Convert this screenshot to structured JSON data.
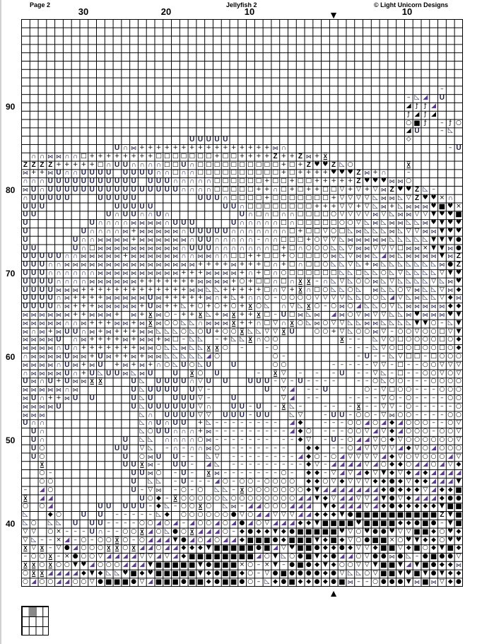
{
  "header": {
    "page": "Page 2",
    "title": "Jellyfish 2",
    "copyright": "© Light Unicorn Designs"
  },
  "column_labels": [
    "30",
    "20",
    "10",
    "10"
  ],
  "row_labels": [
    "90",
    "80",
    "70",
    "60",
    "50",
    "40"
  ],
  "center_markers": {
    "top": "▼",
    "bottom": "▲"
  },
  "symbol_glyphs": {
    "U": {
      "glyph": "U",
      "name": "u-shape"
    },
    "n": {
      "glyph": "∩",
      "name": "cap-shape"
    },
    "b": {
      "glyph": "⋈",
      "name": "bowtie"
    },
    "+": {
      "glyph": "+",
      "name": "plus"
    },
    "q": {
      "glyph": "□",
      "name": "open-square"
    },
    "Z": {
      "glyph": "Z",
      "name": "z-letter"
    },
    "h": {
      "glyph": "♥",
      "name": "heart"
    },
    "V": {
      "glyph": "▼",
      "name": "filled-down-triangle"
    },
    "v": {
      "glyph": "▽",
      "name": "open-down-triangle"
    },
    "r": {
      "glyph": "◺",
      "name": "outline-corner-triangle"
    },
    "t": {
      "glyph": "◢",
      "name": "colored-half-triangle"
    },
    "T": {
      "glyph": "◢",
      "name": "black-half-triangle"
    },
    "f": {
      "glyph": "ƒ",
      "name": "slash-hook"
    },
    "o": {
      "glyph": "○",
      "name": "open-circle"
    },
    "S": {
      "glyph": "■",
      "name": "filled-square"
    },
    "d": {
      "glyph": "◆",
      "name": "filled-diamond"
    },
    "c": {
      "glyph": "●",
      "name": "filled-circle"
    },
    "-": {
      "glyph": "–",
      "name": "dash"
    },
    "x": {
      "glyph": "×",
      "name": "cross"
    },
    "I": {
      "glyph": "X",
      "name": "hourglass"
    },
    "k": {
      "glyph": "◇",
      "name": "open-diamond"
    }
  },
  "chart_rows": [
    "",
    "",
    "",
    "",
    "",
    "",
    "",
    "",
    "                                                  -  ",
    "                                              -rt U  ",
    "                                              Tfft   ",
    "                                              fTfT   ",
    "                                              oSf -fo",
    "                                              TU  -r ",
    "                    UUUUU                     k      ",
    "           Unb++++++++++++++++bn                   -U",
    " nnbbnnq++++++++qqqqqqq+qq++++Z++Zb+I                ",
    "ZZZZ+++++qnUUnnnnqqUnqqqqqqqqqq+q+ZhhZro      I      ",
    "b++bUnnUUUU UUUUnnqnnqqqqqqqqqq+q++++hhhZb+n  -      ",
    "nnnUUUUUUUUUUU UUUnnnnnqqqqqq+qq+qq+++++Zhhhbbo      ",
    "bUnUUUUUUUUUUUUUUUUnnnnqqqqq++nq+q++qqv+v+vbZhhZr-   ",
    "nUUUUU   UUUUU       UUUnqqqq+qqqqqqq+vvvvrbbrvZhhxn ",
    "UUU        UUUUU        UUnqqqqqqqq+++vv+vrb+rbbbhShx",
    "UU        UnUUnnUn        UnqnqnnqqqqovvvvbvrbbvvVhhS",
    "U       UnnnnbbbbnUUU    UnnnnnqnqqqqqoovrbrbbrrbhVhh",
    "U      Unnnnb+bbbbbnUUUUUnnnnnnnq+qqvoqrbrrrbrvvbbVhh",
    "U     Unnbbbb+bbbbbbnUUnnnnn-nnqqq+ovvrbbbbbrrrrrVVVc",
    "UU    UnqbbbbbbbbbbnUUUnnnnnnnq+qnooorrvbbvvvqbbxVVbc",
    "UUUUUnnbbbbb+bbbbbbnnbbnnqq++qq+oqqqobrvbbrtbrbbbbVbZ",
    "UUUnnbbbbbbbbbbbbbbbb++++b+++qn+qnqqorrvr+brrrrrrrbcZ",
    "UUUnnnnnnbbbbbbbbbb+++bbbb+n+qnoqqqqqqrrqrrorvrrrrvVh",
    "UUUUnnnnbbbbbb+++++++bbbb+o+qqnqnII-nrvroobrvrrrrvrbh",
    "UUUUbbb+++++++++++++bbrr+++++qnv+Inqorroribrrovbrrvbdb",
    "UUUUnb++++bbbbbUb+++++bn+r+nno-oooovvvvrroortvrbrrvdb",
    "UUUUnb+++bbbbb+Ub++r+o+o+o+Ior nvrIo-obotrrovrbbbbbdd",
    "bbbbbb++bbb+ b+Ibo-++Ir+bI++Iq-Uqbrb tbovbvvrrbhbbbhV",
    "bbbbbnnb+++bb+bIboorrnbbbI++nqvnIorbovvrrbbrrrrVVo-rV",
    "bnb+bUUnb+b+++bbrrroroU+ooIrrvvIU  oo+vroobv-oovooqvV",
    "bbbbU nb++++b+bb+bq-rr -+rrInoo       I-- rvoqooooqod",
    "bbbbnUn+++++++bborrbrrIIo -  -o        ---rvoqoqooqod",
    "nbbbbUbb+Ub++b+bbrrrrrto      o-        -U--rvqq-qoooor",
    "bbbbnUb+bU +b+b+norUorU  U    oo     -----vv-q--oovvv",
    "nbbbbUn+UrUUbrbU  U Io U    - Iv - - -U --vr-q--oovov",
    "UbnU+UbbII   Ur UUUUnvU U  UUU-v-U----  --oroo---oooo",
    "bbbbbnb      UrUUUU Uv-      U vt --U    o-vqoo---ooo",
    "bUn++bU U    UrU  UUUv-  U     vt --   ----vo-o----oo",
    "bbbbU        UrUUUUUUvn  UU-U -Ir-  -- -I--vv-o-----o",
    "bbb           rn UUUUvv UUU-UU  rv  -UU-oo-vboo----oo",
    "Unn           rnUnUU +r-------- td  ---oototdtooo--ov",
    " Un           roUUnnn+b---------tdo ---oovtvdtooo-oov",
    " Un         U rr nnnnob------- --dv -U-ottvodvoooooov",
    " Uo        UU vr -n-nnbo -------  dd --otvvvvtdvotoooo",
    " Uo         U obU U-- rv --------tdo-otvvvvtdvovoootv",
    "  I         UUIb- UU- tr ---------dv-ttttvtoddottotvd",
    "  o-         UUbo -U- Ib-------o- dd-vtvtdvVdvdtdtttt",
    "  oo         U rr -U---to-oo-oooo ddovdvvvddcdvddtttV",
    "- to         U-vb -o-o rr-IooooooodVtttttttdcdddvtddS",
    "I tt          Uod-IoooooroooooooottVdvttvvtVcvdtttdcc",
    "o ot     UU UUU-dr-ooIo rb-ttooottt VdtttvtdcdddddVSSV",
    "r  do  U U -----rd oooooocvottvvvttdddVcSSSSSSSSSSZVS",
    "ro rr U UU----ootot-toototctovtttddVSSSShSSSSddcSc-VS",
    "vv ox---Un--ooItorcoIttto-dcddVdcSSSSShvohcchvvSSdohd",
    "vr--xt-o-ooIo-otttVctotottdSSScdSSSVdSdvocSSxohVddohh",
    "IvI-vctoooIIoIttottdddVSSSSScStvhSScddcdvvdSSvdSodVSd",
    "-ooI-xcoovttttvvtvtdSSSSSSSStoVrocSVdcttovccbcr-cSccv",
    "IIoIooVhtoootttVSSSSSVcSSSxo-xV-cScdVdoovvVSSVtVScddb",
    "oIIttttdVdrrhSdhSSSSSVdcSSdo-vcSccccdcvrrovSSVhSVcVdd",
    "otoottoovcSSScvtSSScSSdcSSco-rdcSddcdcSb--occcVbSbvdc"
  ]
}
